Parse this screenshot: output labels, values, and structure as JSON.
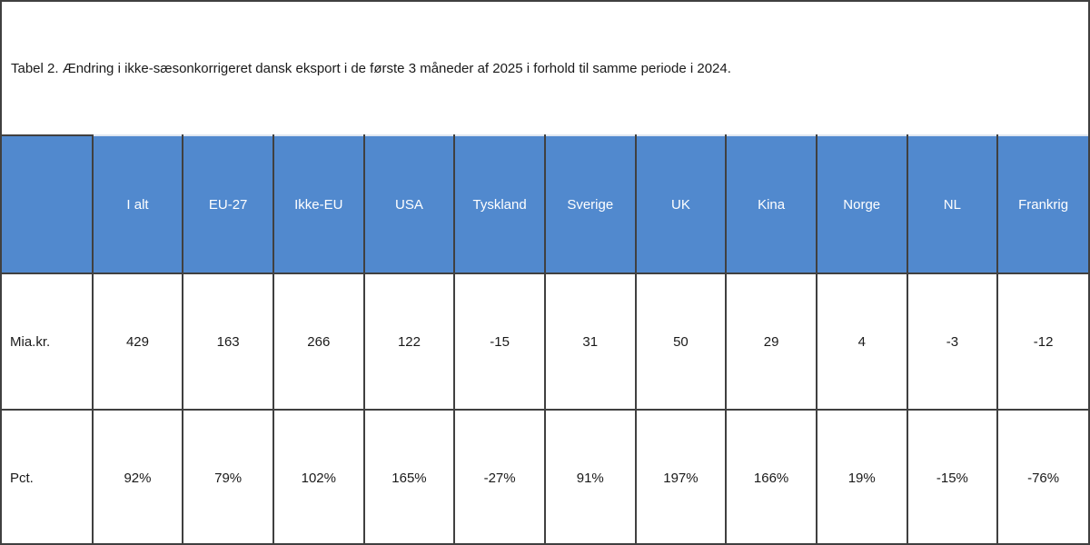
{
  "caption": "Tabel 2. Ændring i ikke-sæsonkorrigeret dansk eksport i de første 3 måneder af 2025 i forhold til samme periode i 2024.",
  "header": [
    "",
    "I alt",
    "EU-27",
    "Ikke-EU",
    "USA",
    "Tyskland",
    "Sverige",
    "UK",
    "Kina",
    "Norge",
    "NL",
    "Frankrig"
  ],
  "rows": [
    {
      "label": "Mia.kr.",
      "values": [
        "429",
        "163",
        "266",
        "122",
        "-15",
        "31",
        "50",
        "29",
        "4",
        "-3",
        "-12"
      ]
    },
    {
      "label": "Pct.",
      "values": [
        "92%",
        "79%",
        "102%",
        "165%",
        "-27%",
        "91%",
        "197%",
        "166%",
        "19%",
        "-15%",
        "-76%"
      ]
    }
  ],
  "colors": {
    "header_bg": "#5189ce",
    "header_text": "#ffffff",
    "border": "#404040",
    "text": "#1a1a1a"
  },
  "chart_data": {
    "type": "table",
    "title": "Tabel 2. Ændring i ikke-sæsonkorrigeret dansk eksport i de første 3 måneder af 2025 i forhold til samme periode i 2024.",
    "categories": [
      "I alt",
      "EU-27",
      "Ikke-EU",
      "USA",
      "Tyskland",
      "Sverige",
      "UK",
      "Kina",
      "Norge",
      "NL",
      "Frankrig"
    ],
    "series": [
      {
        "name": "Mia.kr.",
        "values": [
          429,
          163,
          266,
          122,
          -15,
          31,
          50,
          29,
          4,
          -3,
          -12
        ]
      },
      {
        "name": "Pct.",
        "values": [
          92,
          79,
          102,
          165,
          -27,
          91,
          197,
          166,
          19,
          -15,
          -76
        ]
      }
    ],
    "legend_position": "none",
    "grid": true
  }
}
